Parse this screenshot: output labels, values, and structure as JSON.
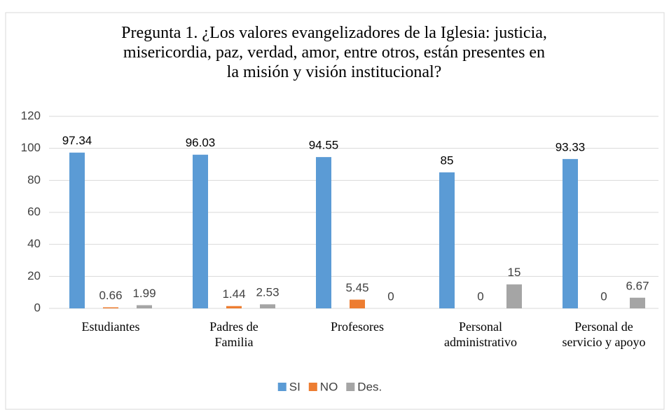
{
  "chart_data": {
    "type": "bar",
    "title": "Pregunta 1. ¿Los valores evangelizadores de la Iglesia: justicia, misericordia, paz, verdad, amor, entre otros, están presentes en la misión y visión institucional?",
    "categories": [
      "Estudiantes",
      "Padres de Familia",
      "Profesores",
      "Personal administrativo",
      "Personal de servicio y apoyo"
    ],
    "series": [
      {
        "name": "SI",
        "color": "#5b9bd5",
        "values": [
          97.34,
          96.03,
          94.55,
          85,
          93.33
        ]
      },
      {
        "name": "NO",
        "color": "#ed7d31",
        "values": [
          0.66,
          1.44,
          5.45,
          0,
          0
        ]
      },
      {
        "name": "Des.",
        "color": "#a5a5a5",
        "values": [
          1.99,
          2.53,
          0,
          15,
          6.67
        ]
      }
    ],
    "ylim": [
      0,
      120
    ],
    "yticks": [
      0,
      20,
      40,
      60,
      80,
      100,
      120
    ],
    "grid": true,
    "legend": "bottom"
  }
}
